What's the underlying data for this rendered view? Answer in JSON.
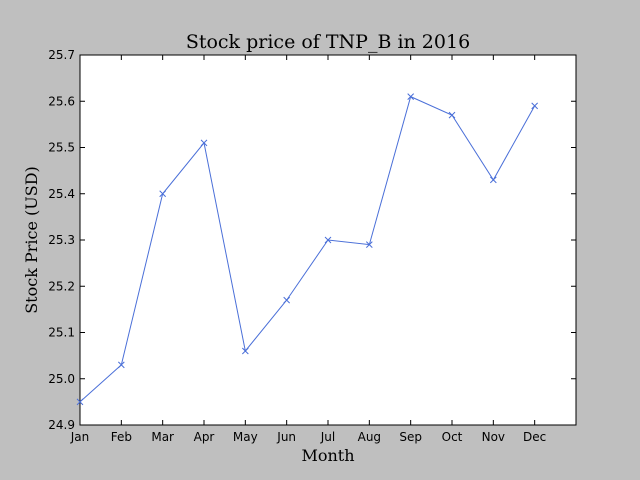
{
  "chart_data": {
    "type": "line",
    "title": "Stock price of TNP_B in 2016",
    "xlabel": "Month",
    "ylabel": "Stock Price (USD)",
    "categories": [
      "Jan",
      "Feb",
      "Mar",
      "Apr",
      "May",
      "Jun",
      "Jul",
      "Aug",
      "Sep",
      "Oct",
      "Nov",
      "Dec"
    ],
    "series": [
      {
        "values": [
          24.95,
          25.03,
          25.4,
          25.51,
          25.06,
          25.17,
          25.3,
          25.29,
          25.61,
          25.57,
          25.43,
          25.59
        ]
      }
    ],
    "ylim": [
      24.9,
      25.7
    ],
    "yticks": [
      "24.9",
      "25.0",
      "25.1",
      "25.2",
      "25.3",
      "25.4",
      "25.5",
      "25.6",
      "25.7"
    ],
    "x_slots": 13,
    "grid": false,
    "marker": "x",
    "line_color": "#4a6fd8",
    "background": "#bfbfbf"
  }
}
